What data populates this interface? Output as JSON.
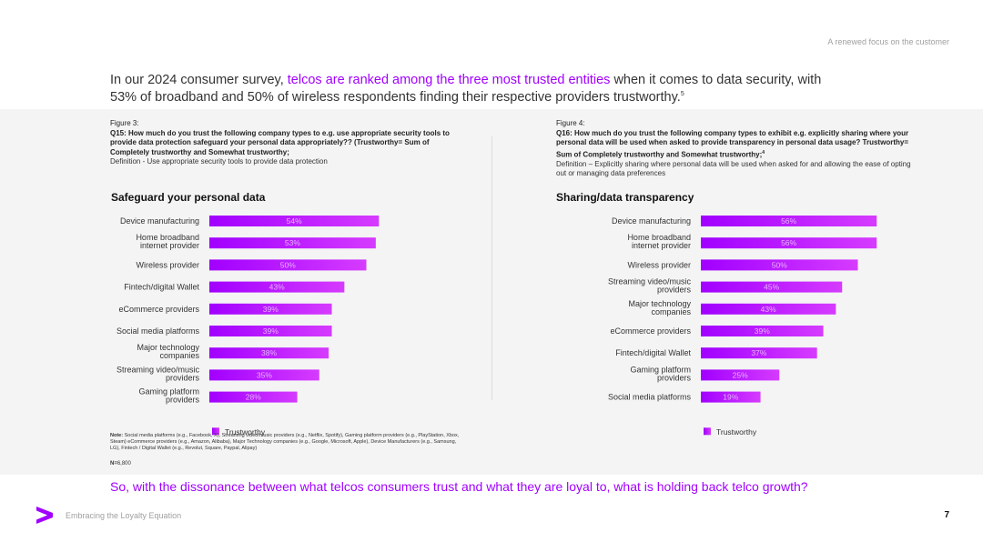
{
  "header": {
    "tagline": "A renewed focus on the customer"
  },
  "headline": {
    "part1": "In our 2024 consumer survey, ",
    "highlight": "telcos are ranked among the three most trusted entities",
    "part2": " when it comes to data security, with 53% of broadband and 50% of wireless respondents finding their respective providers trustworthy.",
    "footnote": "5"
  },
  "figure_left": {
    "label": "Figure 3:",
    "question": "Q15: How much do you trust the following company types to e.g. use appropriate security tools to provide data protection safeguard your personal data appropriately?? (Trustworthy= Sum of Completely trustworthy and Somewhat trustworthy;",
    "definition": "Definition - Use appropriate security tools to provide data protection"
  },
  "figure_right": {
    "label": "Figure 4:",
    "question": "Q16: How much do you trust the following company types to exhibit e.g. explicitly sharing where your personal data will be used when asked to provide transparency in personal data usage? Trustworthy= Sum of Completely trustworthy and Somewhat trustworthy;",
    "footnote": "4",
    "definition": "Definition – Explicitly sharing where personal data will be used when asked for and allowing the ease of opting out or managing data preferences"
  },
  "chart_data": [
    {
      "type": "bar",
      "orientation": "horizontal",
      "title": "Safeguard your personal data",
      "categories": [
        "Device manufacturing",
        "Home broadband|internet provider",
        "Wireless provider",
        "Fintech/digital Wallet",
        "eCommerce providers",
        "Social media platforms",
        "Major technology|companies",
        "Streaming video/music|providers",
        "Gaming platform|providers"
      ],
      "series": [
        {
          "name": "Trustworthy",
          "values": [
            54,
            53,
            50,
            43,
            39,
            39,
            38,
            35,
            28
          ]
        }
      ],
      "value_labels": [
        "54%",
        "53%",
        "50%",
        "43%",
        "39%",
        "39%",
        "38%",
        "35%",
        "28%"
      ],
      "legend": "bottom-left",
      "xlim": [
        0,
        100
      ]
    },
    {
      "type": "bar",
      "orientation": "horizontal",
      "title": "Sharing/data transparency",
      "categories": [
        "Device manufacturing",
        "Home broadband|internet provider",
        "Wireless provider",
        "Streaming video/music|providers",
        "Major technology|companies",
        "eCommerce providers",
        "Fintech/digital Wallet",
        "Gaming platform|providers",
        "Social media platforms"
      ],
      "series": [
        {
          "name": "Trustworthy",
          "values": [
            56,
            56,
            50,
            45,
            43,
            39,
            37,
            25,
            19
          ]
        }
      ],
      "value_labels": [
        "56%",
        "56%",
        "50%",
        "45%",
        "43%",
        "39%",
        "37%",
        "25%",
        "19%"
      ],
      "legend": "bottom-left",
      "xlim": [
        0,
        100
      ]
    }
  ],
  "colors": {
    "accent": "#a100ff",
    "bar_start": "#a100ff",
    "bar_end": "#d63bff",
    "bar_label": "#e6b3ff"
  },
  "note": {
    "label": "Note:",
    "text": " Social media platforms (e.g., Facebook, X), Streaming video/music providers (e.g., Netflix, Spotify), Gaming platform providers (e.g., PlayStation, Xbox, Steam) eCommerce providers (e.g., Amazon, Alibaba), Major Technology companies (e.g., Google, Microsoft, Apple), Device Manufacturers (e.g., Samsung, LG), Fintech / Digital Wallet (e.g., Revolut, Square, Paypal, Alipay)",
    "n_label": "N=",
    "n_value": "6,800"
  },
  "bottom_question": "So, with the dissonance between what telcos consumers trust and what they are loyal to, what is holding back telco growth?",
  "footer": {
    "logo_icon": "accenture-chevron-icon",
    "title": "Embracing the Loyalty Equation",
    "page": "7"
  }
}
